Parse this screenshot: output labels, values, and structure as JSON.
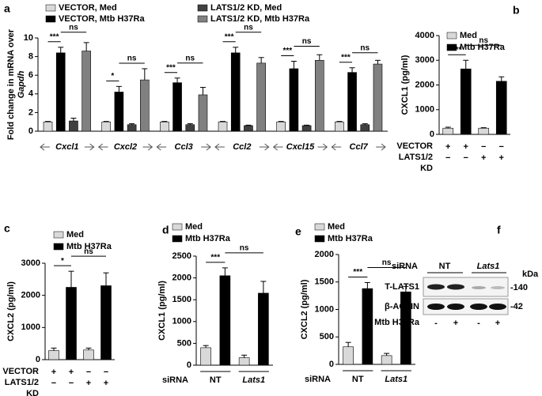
{
  "chart_data": [
    {
      "type": "bar",
      "panel": "a",
      "ylabel": [
        "Fold change in mRNA over",
        "Gapdh"
      ],
      "categories": [
        "Cxcl1",
        "Cxcl2",
        "Ccl3",
        "Ccl2",
        "Cxcl15",
        "Ccl7"
      ],
      "series": [
        {
          "name": "VECTOR, Med",
          "color": "#d9d9d9",
          "values": [
            1,
            1,
            1,
            1,
            1,
            1
          ],
          "errors": [
            0.05,
            0.05,
            0.05,
            0.05,
            0.05,
            0.05
          ]
        },
        {
          "name": "VECTOR, Mtb H37Ra",
          "color": "#000000",
          "values": [
            8.4,
            4.2,
            5.2,
            8.4,
            6.7,
            6.3
          ],
          "errors": [
            0.6,
            0.6,
            0.5,
            0.6,
            0.8,
            0.5
          ]
        },
        {
          "name": "LATS1/2 KD, Med",
          "color": "#404040",
          "values": [
            1.1,
            0.7,
            0.7,
            0.6,
            0.6,
            0.7
          ],
          "errors": [
            0.3,
            0.1,
            0.1,
            0.05,
            0.05,
            0.1
          ]
        },
        {
          "name": "LATS1/2 KD, Mtb H37Ra",
          "color": "#808080",
          "values": [
            8.6,
            5.5,
            3.9,
            7.3,
            7.6,
            7.2
          ],
          "errors": [
            0.9,
            1.2,
            0.8,
            0.6,
            0.6,
            0.4
          ]
        }
      ],
      "ylim": [
        0,
        10
      ],
      "yticks": [
        0,
        2,
        4,
        6,
        8,
        10
      ],
      "significance": [
        [
          "***",
          "ns"
        ],
        [
          "*",
          "ns"
        ],
        [
          "***",
          "ns"
        ],
        [
          "***",
          "ns"
        ],
        [
          "***",
          "ns"
        ],
        [
          "***",
          "ns"
        ]
      ]
    },
    {
      "type": "bar",
      "panel": "b",
      "ylabel": "CXCL1 (pg/ml)",
      "series": [
        {
          "name": "Med",
          "color": "#d9d9d9",
          "values": [
            250,
            null,
            250,
            null
          ],
          "errors": [
            40,
            null,
            20,
            null
          ]
        },
        {
          "name": "Mtb H37Ra",
          "color": "#000000",
          "values": [
            null,
            2650,
            null,
            2150
          ],
          "errors": [
            null,
            350,
            null,
            180
          ]
        }
      ],
      "ylim": [
        0,
        4000
      ],
      "yticks": [
        0,
        1000,
        2000,
        3000,
        4000
      ],
      "significance": [
        "***",
        "ns"
      ],
      "conditions": [
        {
          "label": [
            "VECTOR"
          ],
          "marks": [
            "+",
            "+",
            "−",
            "−"
          ]
        },
        {
          "label": [
            "LATS1/2",
            "KD"
          ],
          "marks": [
            "−",
            "−",
            "+",
            "+"
          ]
        }
      ]
    },
    {
      "type": "bar",
      "panel": "c",
      "ylabel": "CXCL2 (pg/ml)",
      "series": [
        {
          "name": "Med",
          "color": "#d9d9d9",
          "values": [
            280,
            null,
            300,
            null
          ],
          "errors": [
            80,
            null,
            60,
            null
          ]
        },
        {
          "name": "Mtb H37Ra",
          "color": "#000000",
          "values": [
            null,
            2250,
            null,
            2300
          ],
          "errors": [
            null,
            500,
            null,
            400
          ]
        }
      ],
      "ylim": [
        0,
        3000
      ],
      "yticks": [
        0,
        1000,
        2000,
        3000
      ],
      "significance": [
        "*",
        "ns"
      ],
      "conditions": [
        {
          "label": [
            "VECTOR"
          ],
          "marks": [
            "+",
            "+",
            "−",
            "−"
          ]
        },
        {
          "label": [
            "LATS1/2",
            "KD"
          ],
          "marks": [
            "−",
            "−",
            "+",
            "+"
          ]
        }
      ]
    },
    {
      "type": "bar",
      "panel": "d",
      "ylabel": "CXCL1 (pg/ml)",
      "series": [
        {
          "name": "Med",
          "color": "#d9d9d9",
          "values": [
            400,
            null,
            170,
            null
          ],
          "errors": [
            50,
            null,
            60,
            null
          ]
        },
        {
          "name": "Mtb H37Ra",
          "color": "#000000",
          "values": [
            null,
            2050,
            null,
            1650
          ],
          "errors": [
            null,
            180,
            null,
            270
          ]
        }
      ],
      "ylim": [
        0,
        2500
      ],
      "yticks": [
        0,
        500,
        1000,
        1500,
        2000,
        2500
      ],
      "significance": [
        "***",
        "ns"
      ],
      "groups": {
        "label": "siRNA",
        "names": [
          "NT",
          "Lats1"
        ]
      }
    },
    {
      "type": "bar",
      "panel": "e",
      "ylabel": "CXCL2 (pg/ml)",
      "series": [
        {
          "name": "Med",
          "color": "#d9d9d9",
          "values": [
            320,
            null,
            160,
            null
          ],
          "errors": [
            80,
            null,
            40,
            null
          ]
        },
        {
          "name": "Mtb H37Ra",
          "color": "#000000",
          "values": [
            null,
            1380,
            null,
            1320
          ],
          "errors": [
            null,
            110,
            null,
            100
          ]
        }
      ],
      "ylim": [
        0,
        2000
      ],
      "yticks": [
        0,
        500,
        1000,
        1500,
        2000
      ],
      "significance": [
        "***",
        "ns"
      ],
      "groups": {
        "label": "siRNA",
        "names": [
          "NT",
          "Lats1"
        ]
      }
    }
  ],
  "blot": {
    "panel": "f",
    "title": "siRNA",
    "groups": [
      "NT",
      "Lats1"
    ],
    "unit": "kDa",
    "rows": [
      {
        "label": "T-LATS1",
        "size": "-140"
      },
      {
        "label": "β-ACTIN",
        "size": "-42"
      }
    ],
    "treatment": {
      "label": "Mtb H37Ra",
      "marks": [
        "-",
        "+",
        "-",
        "+"
      ]
    }
  }
}
